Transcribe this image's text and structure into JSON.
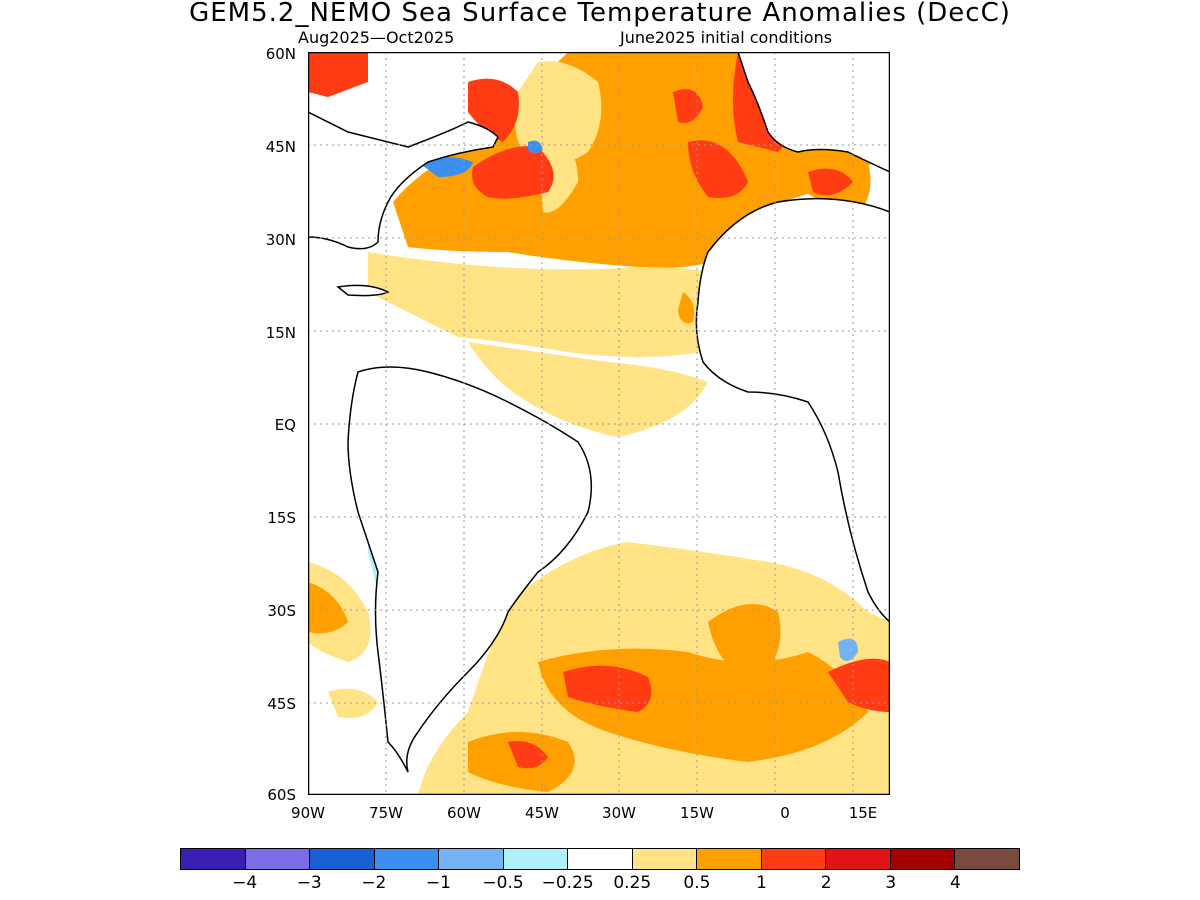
{
  "header": {
    "title": "GEM5.2_NEMO Sea Surface Temperature Anomalies (DecC)",
    "period": "Aug2025—Oct2025",
    "init": "June2025 initial conditions"
  },
  "map": {
    "lat_labels": [
      "60N",
      "45N",
      "30N",
      "15N",
      "EQ",
      "15S",
      "30S",
      "45S",
      "60S"
    ],
    "lon_labels": [
      "90W",
      "75W",
      "60W",
      "45W",
      "30W",
      "15W",
      "0",
      "15E"
    ],
    "colors": {
      "ocean_neutral": "#ffffff",
      "land": "#ffffff",
      "coast": "#000000",
      "grid": "#9a9a9a"
    }
  },
  "colorbar": {
    "colors": [
      "#3b1fb3",
      "#7b6ce8",
      "#1860d2",
      "#3a8ff0",
      "#74b3f5",
      "#b0f0f8",
      "#ffffff",
      "#ffe385",
      "#ffa000",
      "#ff3c14",
      "#e01414",
      "#a50000",
      "#7a4a3e"
    ],
    "labels": [
      "−4",
      "−3",
      "−2",
      "−1",
      "−0.5",
      "−0.25",
      "0.25",
      "0.5",
      "1",
      "2",
      "3",
      "4"
    ]
  }
}
